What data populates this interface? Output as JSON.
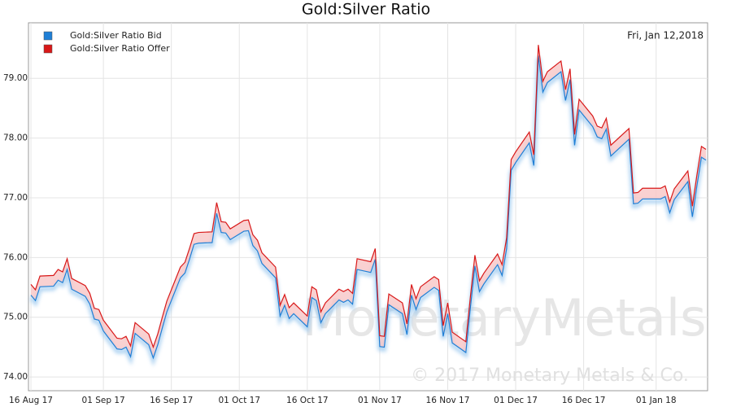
{
  "chart_data": {
    "type": "line",
    "title": "Gold:Silver Ratio",
    "annotation": "Fri, Jan 12,2018",
    "watermark": "MonetaryMetals",
    "copyright": "© 2017 Monetary Metals & Co.",
    "legend": "upper left",
    "grid": true,
    "x": [
      "2017-08-16",
      "2017-08-17",
      "2017-08-18",
      "2017-08-21",
      "2017-08-22",
      "2017-08-23",
      "2017-08-24",
      "2017-08-25",
      "2017-08-28",
      "2017-08-29",
      "2017-08-30",
      "2017-08-31",
      "2017-09-01",
      "2017-09-04",
      "2017-09-05",
      "2017-09-06",
      "2017-09-07",
      "2017-09-08",
      "2017-09-11",
      "2017-09-12",
      "2017-09-13",
      "2017-09-14",
      "2017-09-15",
      "2017-09-18",
      "2017-09-19",
      "2017-09-20",
      "2017-09-21",
      "2017-09-22",
      "2017-09-25",
      "2017-09-26",
      "2017-09-27",
      "2017-09-28",
      "2017-09-29",
      "2017-10-02",
      "2017-10-03",
      "2017-10-04",
      "2017-10-05",
      "2017-10-06",
      "2017-10-09",
      "2017-10-10",
      "2017-10-11",
      "2017-10-12",
      "2017-10-13",
      "2017-10-16",
      "2017-10-17",
      "2017-10-18",
      "2017-10-19",
      "2017-10-20",
      "2017-10-23",
      "2017-10-24",
      "2017-10-25",
      "2017-10-26",
      "2017-10-27",
      "2017-10-30",
      "2017-10-31",
      "2017-11-01",
      "2017-11-02",
      "2017-11-03",
      "2017-11-06",
      "2017-11-07",
      "2017-11-08",
      "2017-11-09",
      "2017-11-10",
      "2017-11-13",
      "2017-11-14",
      "2017-11-15",
      "2017-11-16",
      "2017-11-17",
      "2017-11-20",
      "2017-11-21",
      "2017-11-22",
      "2017-11-23",
      "2017-11-24",
      "2017-11-27",
      "2017-11-28",
      "2017-11-29",
      "2017-11-30",
      "2017-12-01",
      "2017-12-04",
      "2017-12-05",
      "2017-12-06",
      "2017-12-07",
      "2017-12-08",
      "2017-12-11",
      "2017-12-12",
      "2017-12-13",
      "2017-12-14",
      "2017-12-15",
      "2017-12-18",
      "2017-12-19",
      "2017-12-20",
      "2017-12-21",
      "2017-12-22",
      "2017-12-26",
      "2017-12-27",
      "2017-12-28",
      "2017-12-29",
      "2018-01-02",
      "2018-01-03",
      "2018-01-04",
      "2018-01-05",
      "2018-01-08",
      "2018-01-09",
      "2018-01-10",
      "2018-01-11",
      "2018-01-12"
    ],
    "series": [
      {
        "name": "Gold:Silver Ratio Bid",
        "color": "#1f7fd6",
        "values": [
          75.37,
          75.28,
          75.51,
          75.52,
          75.62,
          75.58,
          75.8,
          75.47,
          75.35,
          75.22,
          74.97,
          74.95,
          74.77,
          74.47,
          74.46,
          74.5,
          74.34,
          74.73,
          74.54,
          74.32,
          74.54,
          74.82,
          75.09,
          75.66,
          75.74,
          75.97,
          76.22,
          76.24,
          76.25,
          76.74,
          76.42,
          76.41,
          76.3,
          76.44,
          76.45,
          76.2,
          76.11,
          75.9,
          75.66,
          75.02,
          75.2,
          74.98,
          75.06,
          74.84,
          75.33,
          75.28,
          74.91,
          75.06,
          75.29,
          75.25,
          75.29,
          75.22,
          75.8,
          75.75,
          75.97,
          74.51,
          74.5,
          75.21,
          75.06,
          74.71,
          75.37,
          75.13,
          75.33,
          75.5,
          75.45,
          74.68,
          75.06,
          74.57,
          74.41,
          75.16,
          75.86,
          75.43,
          75.56,
          75.88,
          75.7,
          76.15,
          77.46,
          77.59,
          77.92,
          77.54,
          79.38,
          78.77,
          78.93,
          79.11,
          78.63,
          78.98,
          77.88,
          78.47,
          78.19,
          78.02,
          77.99,
          78.15,
          77.7,
          77.98,
          76.9,
          76.91,
          76.98,
          76.98,
          77.02,
          76.75,
          76.97,
          77.27,
          76.68,
          77.2,
          77.68,
          77.63
        ]
      },
      {
        "name": "Gold:Silver Ratio Offer",
        "color": "#d81818",
        "values": [
          75.55,
          75.46,
          75.69,
          75.7,
          75.8,
          75.76,
          75.98,
          75.65,
          75.53,
          75.4,
          75.15,
          75.13,
          74.95,
          74.65,
          74.64,
          74.68,
          74.52,
          74.91,
          74.72,
          74.5,
          74.72,
          75.0,
          75.27,
          75.84,
          75.92,
          76.15,
          76.4,
          76.42,
          76.43,
          76.92,
          76.6,
          76.59,
          76.48,
          76.62,
          76.63,
          76.38,
          76.29,
          76.08,
          75.84,
          75.2,
          75.38,
          75.16,
          75.24,
          75.02,
          75.51,
          75.46,
          75.09,
          75.24,
          75.47,
          75.43,
          75.47,
          75.4,
          75.98,
          75.93,
          76.15,
          74.69,
          74.68,
          75.39,
          75.24,
          74.89,
          75.55,
          75.31,
          75.51,
          75.68,
          75.63,
          74.86,
          75.24,
          74.75,
          74.59,
          75.34,
          76.04,
          75.61,
          75.74,
          76.06,
          75.88,
          76.33,
          77.64,
          77.77,
          78.1,
          77.72,
          79.56,
          78.95,
          79.11,
          79.29,
          78.81,
          79.16,
          78.06,
          78.65,
          78.37,
          78.2,
          78.17,
          78.33,
          77.88,
          78.16,
          77.08,
          77.09,
          77.16,
          77.16,
          77.2,
          76.93,
          77.15,
          77.45,
          76.86,
          77.38,
          77.86,
          77.81
        ]
      }
    ],
    "xlim": [
      "2017-08-16",
      "2018-01-12"
    ],
    "xticks": [
      {
        "value": "2017-08-16",
        "label": "16 Aug 17"
      },
      {
        "value": "2017-09-01",
        "label": "01 Sep 17"
      },
      {
        "value": "2017-09-16",
        "label": "16 Sep 17"
      },
      {
        "value": "2017-10-01",
        "label": "01 Oct 17"
      },
      {
        "value": "2017-10-16",
        "label": "16 Oct 17"
      },
      {
        "value": "2017-11-01",
        "label": "01 Nov 17"
      },
      {
        "value": "2017-11-16",
        "label": "16 Nov 17"
      },
      {
        "value": "2017-12-01",
        "label": "01 Dec 17"
      },
      {
        "value": "2017-12-16",
        "label": "16 Dec 17"
      },
      {
        "value": "2018-01-01",
        "label": "01 Jan 18"
      }
    ],
    "ylim": [
      73.77,
      79.93
    ],
    "yticks": [
      {
        "value": 74,
        "label": "74.00"
      },
      {
        "value": 75,
        "label": "75.00"
      },
      {
        "value": 76,
        "label": "76.00"
      },
      {
        "value": 77,
        "label": "77.00"
      },
      {
        "value": 78,
        "label": "78.00"
      },
      {
        "value": 79,
        "label": "79.00"
      }
    ]
  }
}
